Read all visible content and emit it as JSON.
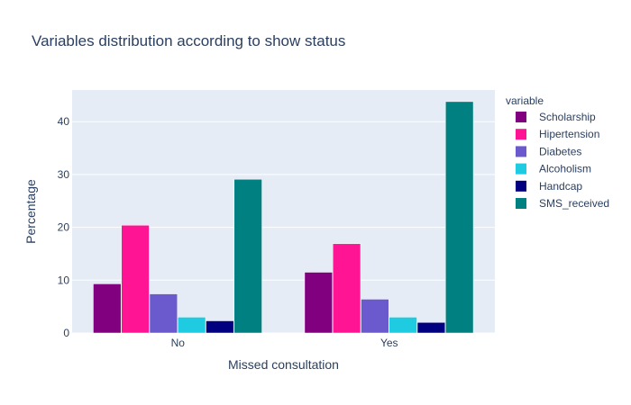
{
  "chart_data": {
    "type": "bar",
    "title": "Variables distribution according to show status",
    "xlabel": "Missed consultation",
    "ylabel": "Percentage",
    "categories": [
      "No",
      "Yes"
    ],
    "ylim": [
      0,
      46
    ],
    "yticks": [
      0,
      10,
      20,
      30,
      40
    ],
    "grid": true,
    "legend_title": "variable",
    "legend_position": "right",
    "series": [
      {
        "name": "Scholarship",
        "values": [
          9.3,
          11.5
        ],
        "color": "#800080"
      },
      {
        "name": "Hipertension",
        "values": [
          20.4,
          16.9
        ],
        "color": "#ff1493"
      },
      {
        "name": "Diabetes",
        "values": [
          7.4,
          6.4
        ],
        "color": "#6a5acd"
      },
      {
        "name": "Alcoholism",
        "values": [
          3.0,
          3.0
        ],
        "color": "#1ecbe1"
      },
      {
        "name": "Handcap",
        "values": [
          2.3,
          2.0
        ],
        "color": "#000080"
      },
      {
        "name": "SMS_received",
        "values": [
          29.1,
          43.8
        ],
        "color": "#008080"
      }
    ]
  },
  "colors": {
    "plot_background": "#e5ecf6",
    "gridline": "#ffffff",
    "text": "#2a3f5f"
  }
}
